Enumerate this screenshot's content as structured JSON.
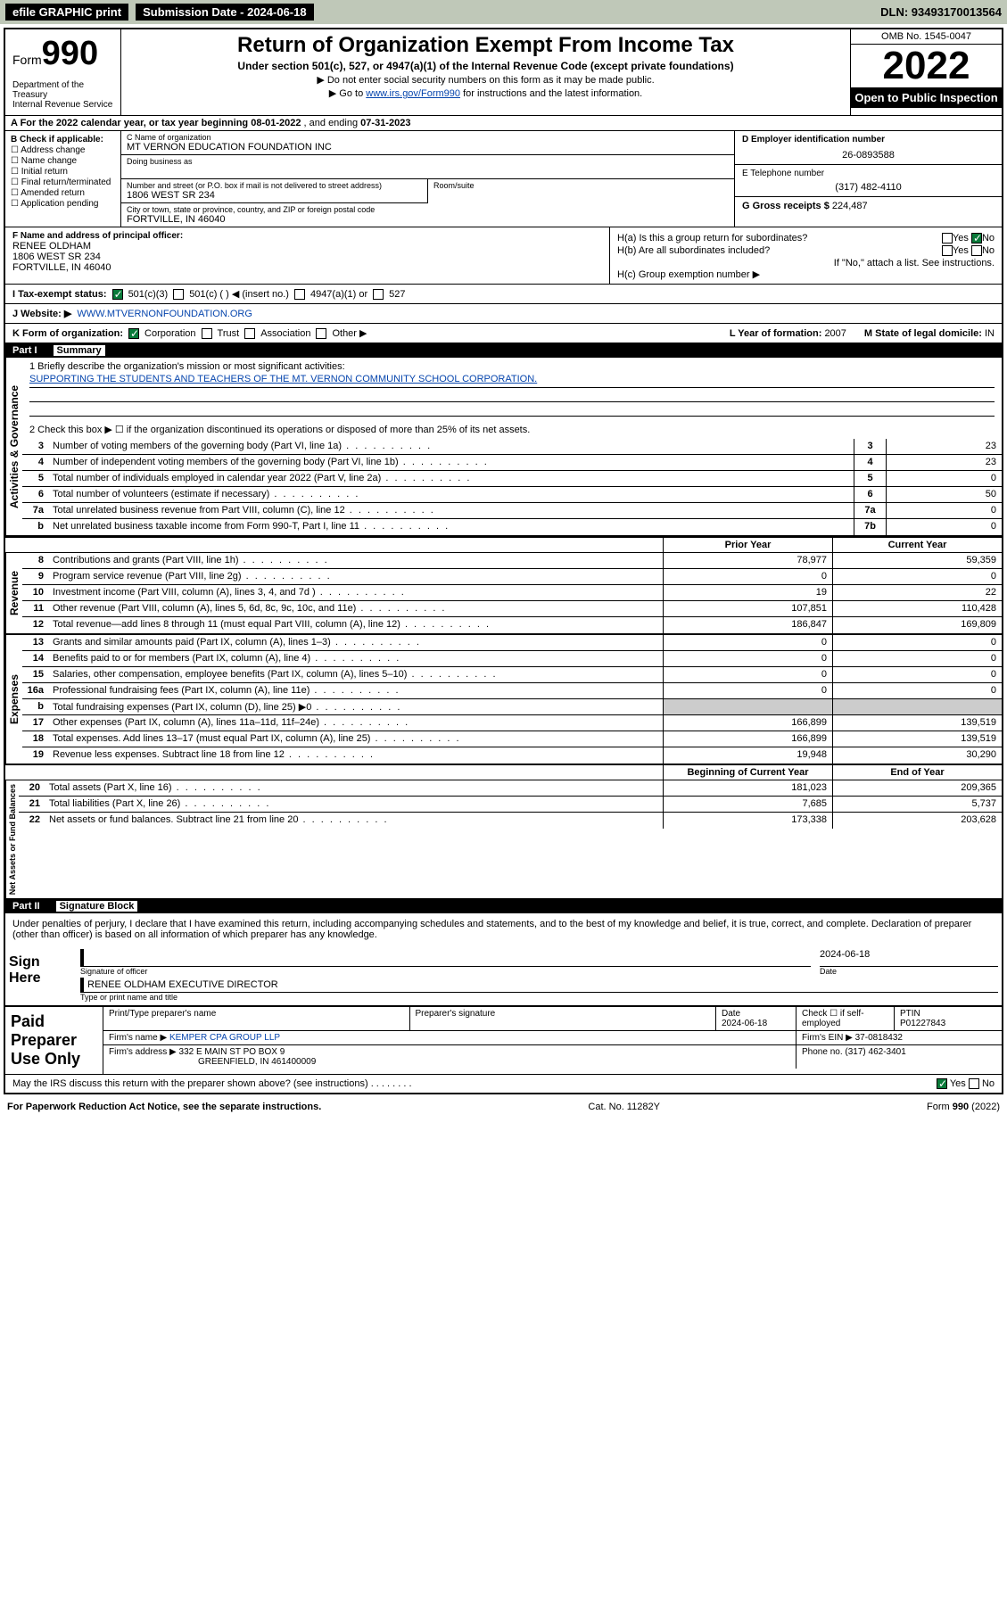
{
  "topbar": {
    "efile": "efile GRAPHIC print",
    "submission_label": "Submission Date - 2024-06-18",
    "dln": "DLN: 93493170013564"
  },
  "header": {
    "form_word": "Form",
    "form_num": "990",
    "dept": "Department of the Treasury\nInternal Revenue Service",
    "title": "Return of Organization Exempt From Income Tax",
    "subtitle": "Under section 501(c), 527, or 4947(a)(1) of the Internal Revenue Code (except private foundations)",
    "note1": "▶ Do not enter social security numbers on this form as it may be made public.",
    "note2_pre": "▶ Go to ",
    "note2_link": "www.irs.gov/Form990",
    "note2_post": " for instructions and the latest information.",
    "omb": "OMB No. 1545-0047",
    "year": "2022",
    "open": "Open to Public Inspection"
  },
  "row_a": {
    "text_pre": "A For the 2022 calendar year, or tax year beginning ",
    "begin": "08-01-2022",
    "mid": " , and ending ",
    "end": "07-31-2023"
  },
  "col_b": {
    "label": "B Check if applicable:",
    "items": [
      "Address change",
      "Name change",
      "Initial return",
      "Final return/terminated",
      "Amended return",
      "Application pending"
    ]
  },
  "col_c": {
    "c_label": "C Name of organization",
    "c_val": "MT VERNON EDUCATION FOUNDATION INC",
    "dba_label": "Doing business as",
    "dba_val": "",
    "street_label": "Number and street (or P.O. box if mail is not delivered to street address)",
    "street_val": "1806 WEST SR 234",
    "room_label": "Room/suite",
    "city_label": "City or town, state or province, country, and ZIP or foreign postal code",
    "city_val": "FORTVILLE, IN  46040"
  },
  "col_d": {
    "d_label": "D Employer identification number",
    "d_val": "26-0893588",
    "e_label": "E Telephone number",
    "e_val": "(317) 482-4110",
    "g_label": "G Gross receipts $ ",
    "g_val": "224,487"
  },
  "block_f": {
    "f_label": "F Name and address of principal officer:",
    "f_name": "RENEE OLDHAM",
    "f_addr1": "1806 WEST SR 234",
    "f_addr2": "FORTVILLE, IN  46040",
    "ha": "H(a)  Is this a group return for subordinates?",
    "ha_yes": "Yes",
    "ha_no": "No",
    "hb": "H(b)  Are all subordinates included?",
    "hb_yes": "Yes",
    "hb_no": "No",
    "hb_note": "If \"No,\" attach a list. See instructions.",
    "hc": "H(c)  Group exemption number ▶"
  },
  "row_i": {
    "label": "I  Tax-exempt status:",
    "opt1": "501(c)(3)",
    "opt2": "501(c) (   ) ◀ (insert no.)",
    "opt3": "4947(a)(1) or",
    "opt4": "527"
  },
  "row_j": {
    "label": "J  Website: ▶",
    "val": "WWW.MTVERNONFOUNDATION.ORG"
  },
  "row_k": {
    "label": "K Form of organization:",
    "opts": [
      "Corporation",
      "Trust",
      "Association",
      "Other ▶"
    ],
    "l_label": "L Year of formation: ",
    "l_val": "2007",
    "m_label": "M State of legal domicile: ",
    "m_val": "IN"
  },
  "part1": {
    "pt": "Part I",
    "title": "Summary"
  },
  "mission": {
    "line1_label": "1  Briefly describe the organization's mission or most significant activities:",
    "line1_val": "SUPPORTING THE STUDENTS AND TEACHERS OF THE MT. VERNON COMMUNITY SCHOOL CORPORATION.",
    "line2": "2  Check this box ▶ ☐  if the organization discontinued its operations or disposed of more than 25% of its net assets."
  },
  "gov_lines": [
    {
      "n": "3",
      "t": "Number of voting members of the governing body (Part VI, line 1a)",
      "c": "3",
      "v": "23"
    },
    {
      "n": "4",
      "t": "Number of independent voting members of the governing body (Part VI, line 1b)",
      "c": "4",
      "v": "23"
    },
    {
      "n": "5",
      "t": "Total number of individuals employed in calendar year 2022 (Part V, line 2a)",
      "c": "5",
      "v": "0"
    },
    {
      "n": "6",
      "t": "Total number of volunteers (estimate if necessary)",
      "c": "6",
      "v": "50"
    },
    {
      "n": "7a",
      "t": "Total unrelated business revenue from Part VIII, column (C), line 12",
      "c": "7a",
      "v": "0"
    },
    {
      "n": "b",
      "t": "Net unrelated business taxable income from Form 990-T, Part I, line 11",
      "c": "7b",
      "v": "0"
    }
  ],
  "twocol_hdr": {
    "prior": "Prior Year",
    "current": "Current Year"
  },
  "rev_lines": [
    {
      "n": "8",
      "t": "Contributions and grants (Part VIII, line 1h)",
      "p": "78,977",
      "c": "59,359"
    },
    {
      "n": "9",
      "t": "Program service revenue (Part VIII, line 2g)",
      "p": "0",
      "c": "0"
    },
    {
      "n": "10",
      "t": "Investment income (Part VIII, column (A), lines 3, 4, and 7d )",
      "p": "19",
      "c": "22"
    },
    {
      "n": "11",
      "t": "Other revenue (Part VIII, column (A), lines 5, 6d, 8c, 9c, 10c, and 11e)",
      "p": "107,851",
      "c": "110,428"
    },
    {
      "n": "12",
      "t": "Total revenue—add lines 8 through 11 (must equal Part VIII, column (A), line 12)",
      "p": "186,847",
      "c": "169,809"
    }
  ],
  "exp_lines": [
    {
      "n": "13",
      "t": "Grants and similar amounts paid (Part IX, column (A), lines 1–3)",
      "p": "0",
      "c": "0"
    },
    {
      "n": "14",
      "t": "Benefits paid to or for members (Part IX, column (A), line 4)",
      "p": "0",
      "c": "0"
    },
    {
      "n": "15",
      "t": "Salaries, other compensation, employee benefits (Part IX, column (A), lines 5–10)",
      "p": "0",
      "c": "0"
    },
    {
      "n": "16a",
      "t": "Professional fundraising fees (Part IX, column (A), line 11e)",
      "p": "0",
      "c": "0"
    },
    {
      "n": "b",
      "t": "Total fundraising expenses (Part IX, column (D), line 25) ▶0",
      "p": "",
      "c": "",
      "grey": true
    },
    {
      "n": "17",
      "t": "Other expenses (Part IX, column (A), lines 11a–11d, 11f–24e)",
      "p": "166,899",
      "c": "139,519"
    },
    {
      "n": "18",
      "t": "Total expenses. Add lines 13–17 (must equal Part IX, column (A), line 25)",
      "p": "166,899",
      "c": "139,519"
    },
    {
      "n": "19",
      "t": "Revenue less expenses. Subtract line 18 from line 12",
      "p": "19,948",
      "c": "30,290"
    }
  ],
  "na_hdr": {
    "begin": "Beginning of Current Year",
    "end": "End of Year"
  },
  "na_lines": [
    {
      "n": "20",
      "t": "Total assets (Part X, line 16)",
      "p": "181,023",
      "c": "209,365"
    },
    {
      "n": "21",
      "t": "Total liabilities (Part X, line 26)",
      "p": "7,685",
      "c": "5,737"
    },
    {
      "n": "22",
      "t": "Net assets or fund balances. Subtract line 21 from line 20",
      "p": "173,338",
      "c": "203,628"
    }
  ],
  "part2": {
    "pt": "Part II",
    "title": "Signature Block"
  },
  "sig": {
    "decl": "Under penalties of perjury, I declare that I have examined this return, including accompanying schedules and statements, and to the best of my knowledge and belief, it is true, correct, and complete. Declaration of preparer (other than officer) is based on all information of which preparer has any knowledge.",
    "sign_here": "Sign Here",
    "sig_officer": "Signature of officer",
    "date": "Date",
    "date_val": "2024-06-18",
    "name_title": "RENEE OLDHAM  EXECUTIVE DIRECTOR",
    "name_title_lbl": "Type or print name and title"
  },
  "paid": {
    "label": "Paid Preparer Use Only",
    "h1": "Print/Type preparer's name",
    "h2": "Preparer's signature",
    "h3": "Date",
    "h3v": "2024-06-18",
    "h4": "Check ☐ if self-employed",
    "h5": "PTIN",
    "h5v": "P01227843",
    "firm_name_l": "Firm's name    ▶",
    "firm_name": "KEMPER CPA GROUP LLP",
    "firm_ein_l": "Firm's EIN ▶",
    "firm_ein": "37-0818432",
    "firm_addr_l": "Firm's address ▶",
    "firm_addr1": "332 E MAIN ST PO BOX 9",
    "firm_addr2": "GREENFIELD, IN  461400009",
    "phone_l": "Phone no.",
    "phone": "(317) 462-3401"
  },
  "may": {
    "q": "May the IRS discuss this return with the preparer shown above? (see instructions)",
    "yes": "Yes",
    "no": "No"
  },
  "foot": {
    "l": "For Paperwork Reduction Act Notice, see the separate instructions.",
    "m": "Cat. No. 11282Y",
    "r": "Form 990 (2022)"
  },
  "side": {
    "gov": "Activities & Governance",
    "rev": "Revenue",
    "exp": "Expenses",
    "na": "Net Assets or Fund Balances"
  }
}
